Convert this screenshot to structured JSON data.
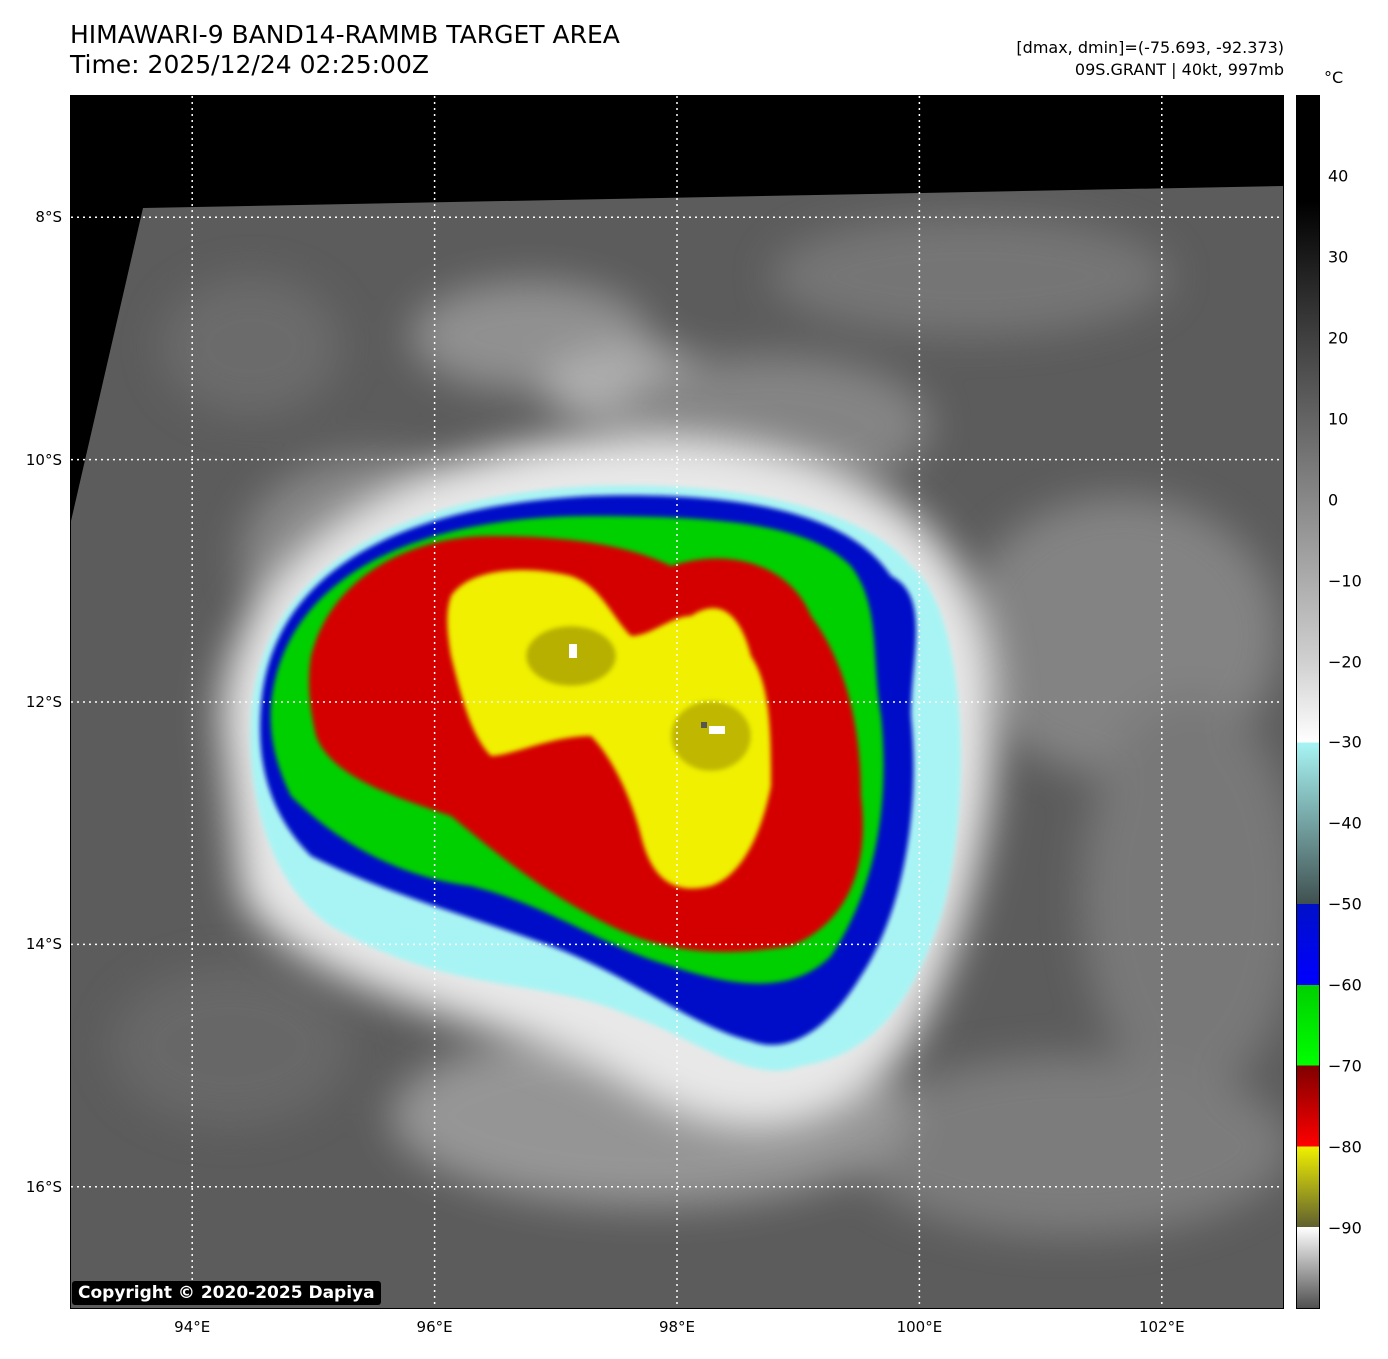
{
  "header": {
    "title": "HIMAWARI-9 BAND14-RAMMB TARGET AREA",
    "time": "Time: 2025/12/24 02:25:00Z",
    "range": "[dmax, dmin]=(-75.693, -92.373)",
    "storm": "09S.GRANT | 40kt, 997mb"
  },
  "map": {
    "lon_min": 93.0,
    "lon_max": 103.0,
    "lat_min": -17.0,
    "lat_max": -7.0,
    "grid_lines": "white dotted",
    "lat_ticks": [
      {
        "value": -8,
        "label": "8°S"
      },
      {
        "value": -10,
        "label": "10°S"
      },
      {
        "value": -12,
        "label": "12°S"
      },
      {
        "value": -14,
        "label": "14°S"
      },
      {
        "value": -16,
        "label": "16°S"
      }
    ],
    "lon_ticks": [
      {
        "value": 94,
        "label": "94°E"
      },
      {
        "value": 96,
        "label": "96°E"
      },
      {
        "value": 98,
        "label": "98°E"
      },
      {
        "value": 100,
        "label": "100°E"
      },
      {
        "value": 102,
        "label": "102°E"
      }
    ],
    "copyright": "Copyright © 2020-2025 Dapiya"
  },
  "colorbar": {
    "unit": "°C",
    "min": -100,
    "max": 50,
    "ticks": [
      {
        "value": 40,
        "label": "40"
      },
      {
        "value": 30,
        "label": "30"
      },
      {
        "value": 20,
        "label": "20"
      },
      {
        "value": 10,
        "label": "10"
      },
      {
        "value": 0,
        "label": "0"
      },
      {
        "value": -10,
        "label": "−10"
      },
      {
        "value": -20,
        "label": "−20"
      },
      {
        "value": -30,
        "label": "−30"
      },
      {
        "value": -40,
        "label": "−40"
      },
      {
        "value": -50,
        "label": "−50"
      },
      {
        "value": -60,
        "label": "−60"
      },
      {
        "value": -70,
        "label": "−70"
      },
      {
        "value": -80,
        "label": "−80"
      },
      {
        "value": -90,
        "label": "−90"
      }
    ],
    "colors": {
      "ice": "#a8f4f4",
      "blue": "#0010c8",
      "green": "#00d000",
      "red": "#d40000",
      "yellow": "#f0f000",
      "cloud_gray": "#8a8a8a",
      "ocean_gray": "#5a5a5a",
      "space": "#000000"
    }
  }
}
